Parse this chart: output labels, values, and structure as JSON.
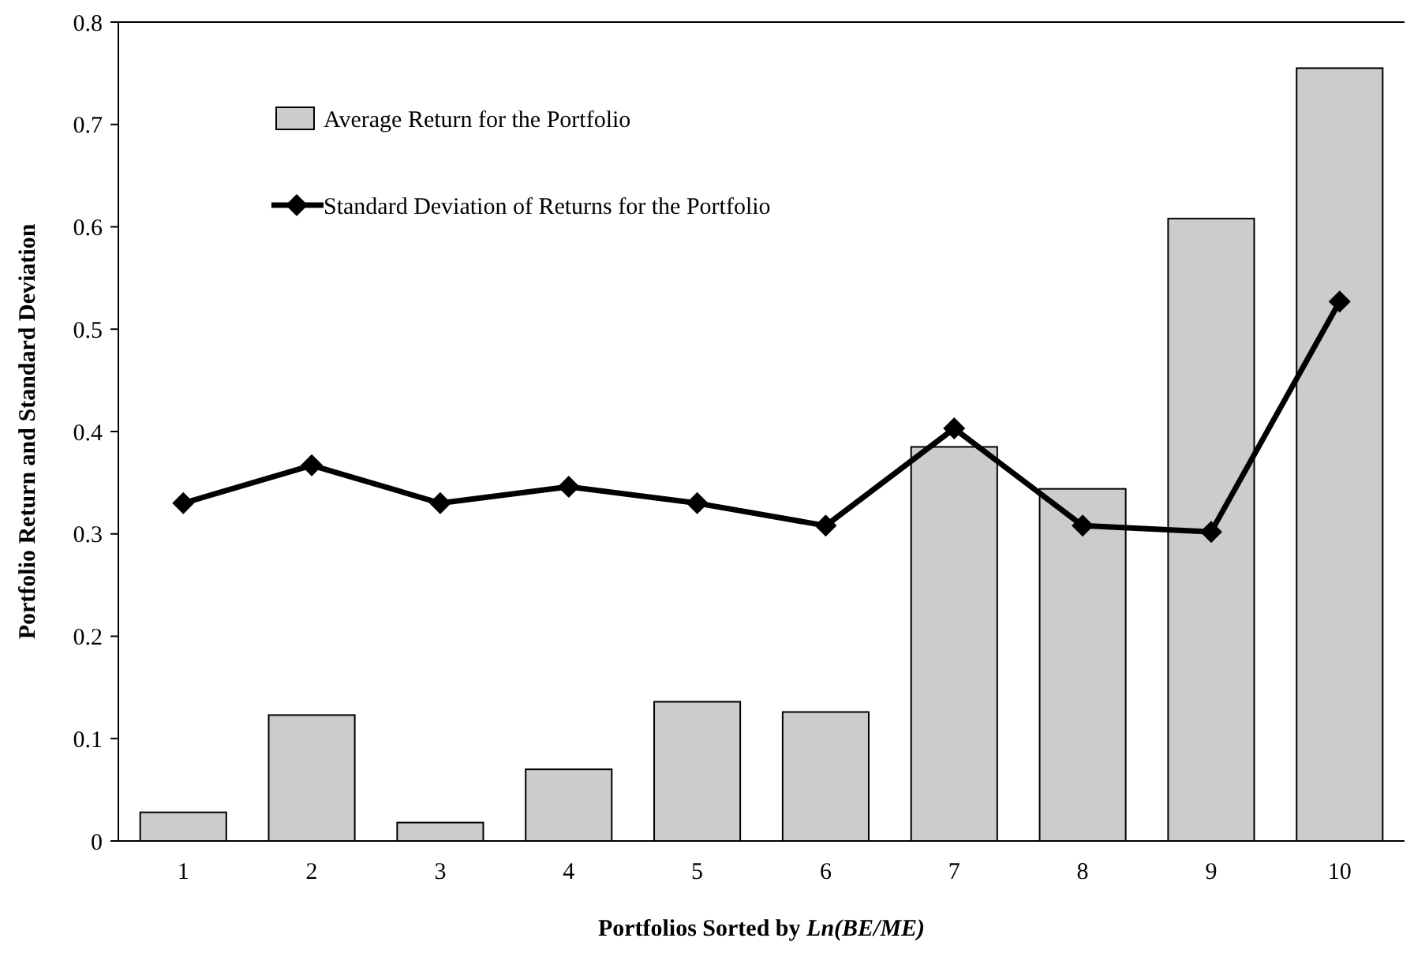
{
  "chart_data": {
    "type": "bar",
    "xlabel": "Portfolios Sorted by Ln(BE/ME)",
    "ylabel": "Portfolio Return and Standard Deviation",
    "categories": [
      "1",
      "2",
      "3",
      "4",
      "5",
      "6",
      "7",
      "8",
      "9",
      "10"
    ],
    "series": [
      {
        "name": "Average Return for the Portfolio",
        "color": "#cccccc",
        "values": [
          0.028,
          0.123,
          0.018,
          0.07,
          0.136,
          0.126,
          0.385,
          0.344,
          0.608,
          0.755
        ]
      },
      {
        "name": "Standard Deviation of Returns for the Portfolio",
        "type": "line",
        "color": "#000000",
        "marker": "diamond",
        "values": [
          0.33,
          0.367,
          0.33,
          0.346,
          0.33,
          0.308,
          0.403,
          0.308,
          0.302,
          0.527
        ]
      }
    ],
    "ylim": [
      0,
      0.8
    ],
    "yticks": [
      0,
      0.1,
      0.2,
      0.3,
      0.4,
      0.5,
      0.6,
      0.7,
      0.8
    ],
    "legend": "top left"
  }
}
